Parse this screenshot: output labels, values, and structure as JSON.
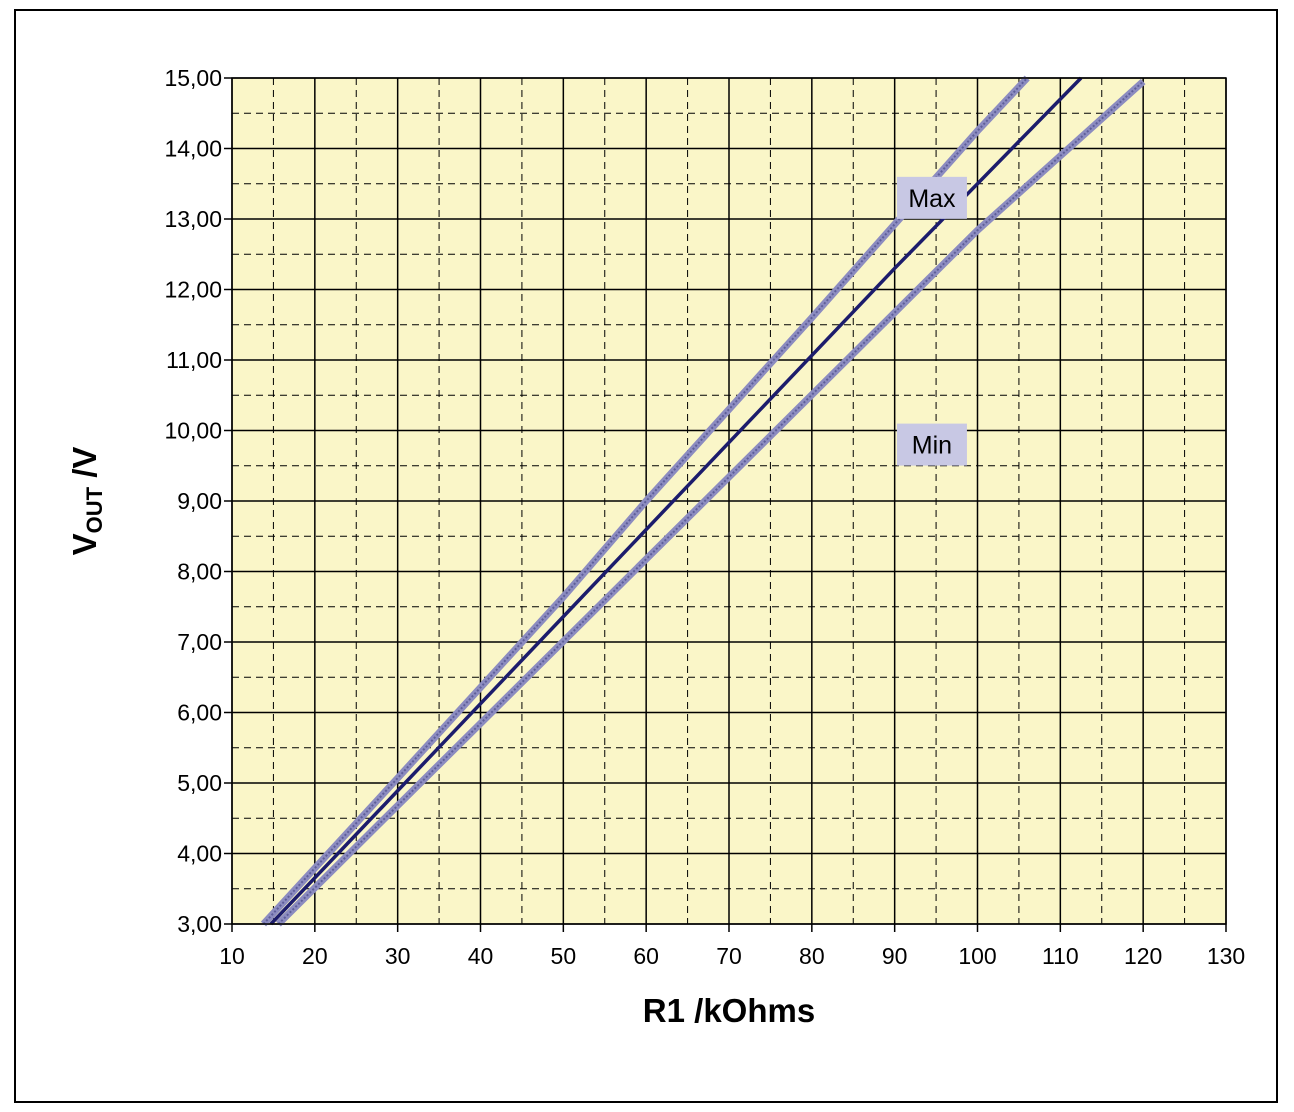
{
  "chart_data": {
    "type": "line",
    "xlabel": "R1 /kOhms",
    "ylabel": {
      "main": "V",
      "sub": "OUT",
      "rest": " /V"
    },
    "xlim": [
      10,
      130
    ],
    "ylim": [
      3,
      15
    ],
    "xticks": [
      10,
      20,
      30,
      40,
      50,
      60,
      70,
      80,
      90,
      100,
      110,
      120,
      130
    ],
    "yticks": [
      3,
      4,
      5,
      6,
      7,
      8,
      9,
      10,
      11,
      12,
      13,
      14,
      15
    ],
    "xtick_labels": [
      "10",
      "20",
      "30",
      "40",
      "50",
      "60",
      "70",
      "80",
      "90",
      "100",
      "110",
      "120",
      "130"
    ],
    "ytick_labels": [
      "3,00",
      "4,00",
      "5,00",
      "6,00",
      "7,00",
      "8,00",
      "9,00",
      "10,00",
      "11,00",
      "12,00",
      "13,00",
      "14,00",
      "15,00"
    ],
    "grid": {
      "major": true,
      "minor_dashed": true
    },
    "plot_background": "#faf6c8",
    "series": [
      {
        "key": "max",
        "label": "Max",
        "style": "hatched",
        "color": "#8c8cc0",
        "x": [
          13.8,
          30,
          50,
          60,
          80,
          100,
          106
        ],
        "y": [
          3.0,
          5.07,
          7.64,
          9.0,
          11.6,
          14.25,
          15.0
        ]
      },
      {
        "key": "typ",
        "label": "",
        "style": "solid",
        "color": "#1c1c6c",
        "x": [
          14.7,
          30,
          50,
          70,
          90,
          112.5
        ],
        "y": [
          3.0,
          4.89,
          7.36,
          9.83,
          12.3,
          15.0
        ]
      },
      {
        "key": "min",
        "label": "Min",
        "style": "hatched",
        "color": "#8c8cc0",
        "x": [
          15.6,
          30,
          50,
          70,
          100,
          120
        ],
        "y": [
          3.0,
          4.68,
          7.01,
          9.34,
          12.84,
          14.95
        ]
      }
    ],
    "annotations": [
      {
        "text": "Max",
        "x": 94.5,
        "y": 13.3
      },
      {
        "text": "Min",
        "x": 94.5,
        "y": 9.8
      }
    ],
    "annotation_bg": "#c8c8e4"
  }
}
